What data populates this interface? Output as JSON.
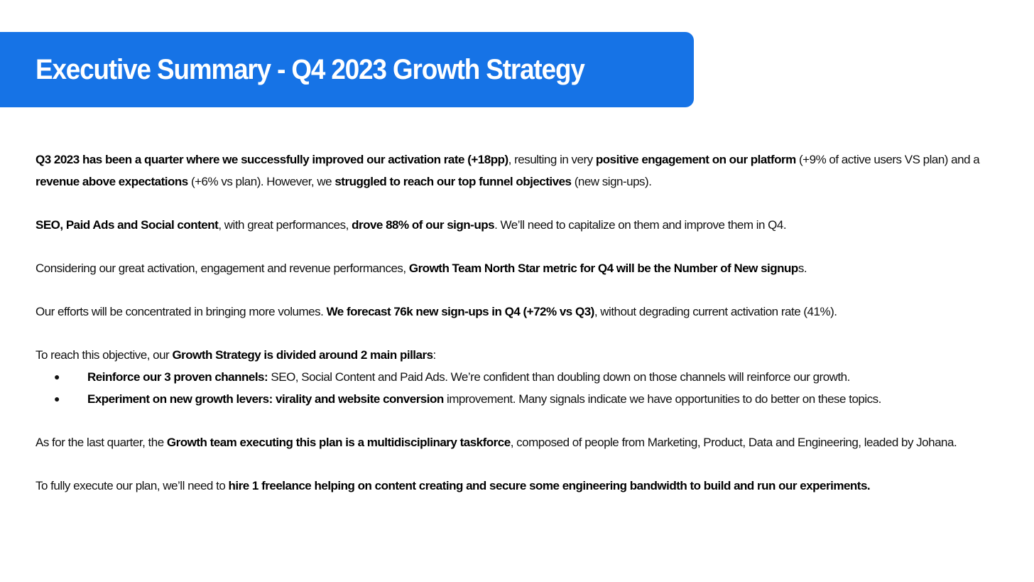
{
  "title": "Executive Summary - Q4 2023 Growth Strategy",
  "paragraphs": {
    "p1": {
      "b1": "Q3 2023 has been a quarter where we successfully improved our activation rate (+18pp)",
      "t1": ", resulting in very ",
      "b2": "positive engagement on our platform",
      "t2": " (+9% of active users VS plan) and a ",
      "b3": "revenue above expectations",
      "t3": " (+6% vs plan). However, we ",
      "b4": "struggled to reach our top funnel objectives",
      "t4": " (new sign-ups)."
    },
    "p2": {
      "b1": "SEO, Paid Ads and Social content",
      "t1": ", with great performances, ",
      "b2": "drove 88% of our sign-ups",
      "t2": ". We’ll need to capitalize on them and improve them in Q4."
    },
    "p3": {
      "t1": "Considering our great activation, engagement and revenue performances, ",
      "b1": "Growth Team North Star metric for Q4 will be the Number of New signup",
      "t2": "s."
    },
    "p4": {
      "t1": "Our efforts will be concentrated in bringing more volumes. ",
      "b1": "We forecast 76k new sign-ups in Q4 (+72% vs Q3)",
      "t2": ", without degrading current activation rate (41%)."
    },
    "p5": {
      "t1": "To reach this objective, our ",
      "b1": "Growth Strategy is divided around 2 main pillars",
      "t2": ":"
    },
    "pillars": [
      {
        "bullet": "●",
        "bold": "Reinforce our 3 proven channels:",
        "text": " SEO, Social Content and Paid Ads. We’re confident than doubling down on those channels will reinforce our growth."
      },
      {
        "bullet": "●",
        "bold": "Experiment on new growth levers: virality and website conversion",
        "text": " improvement. Many signals indicate we have opportunities to do better on these topics."
      }
    ],
    "p6": {
      "t1": "As for the last quarter, the ",
      "b1": "Growth team executing this plan is a multidisciplinary taskforce",
      "t2": ", composed of people from Marketing, Product, Data and Engineering, leaded by Johana."
    },
    "p7": {
      "t1": "To fully execute our plan, we’ll need to ",
      "b1": "hire 1 freelance helping on content creating and secure some engineering bandwidth to build and run our experiments."
    }
  },
  "colors": {
    "banner": "#1673e6",
    "title_text": "#ffffff",
    "body_text": "#111111"
  }
}
